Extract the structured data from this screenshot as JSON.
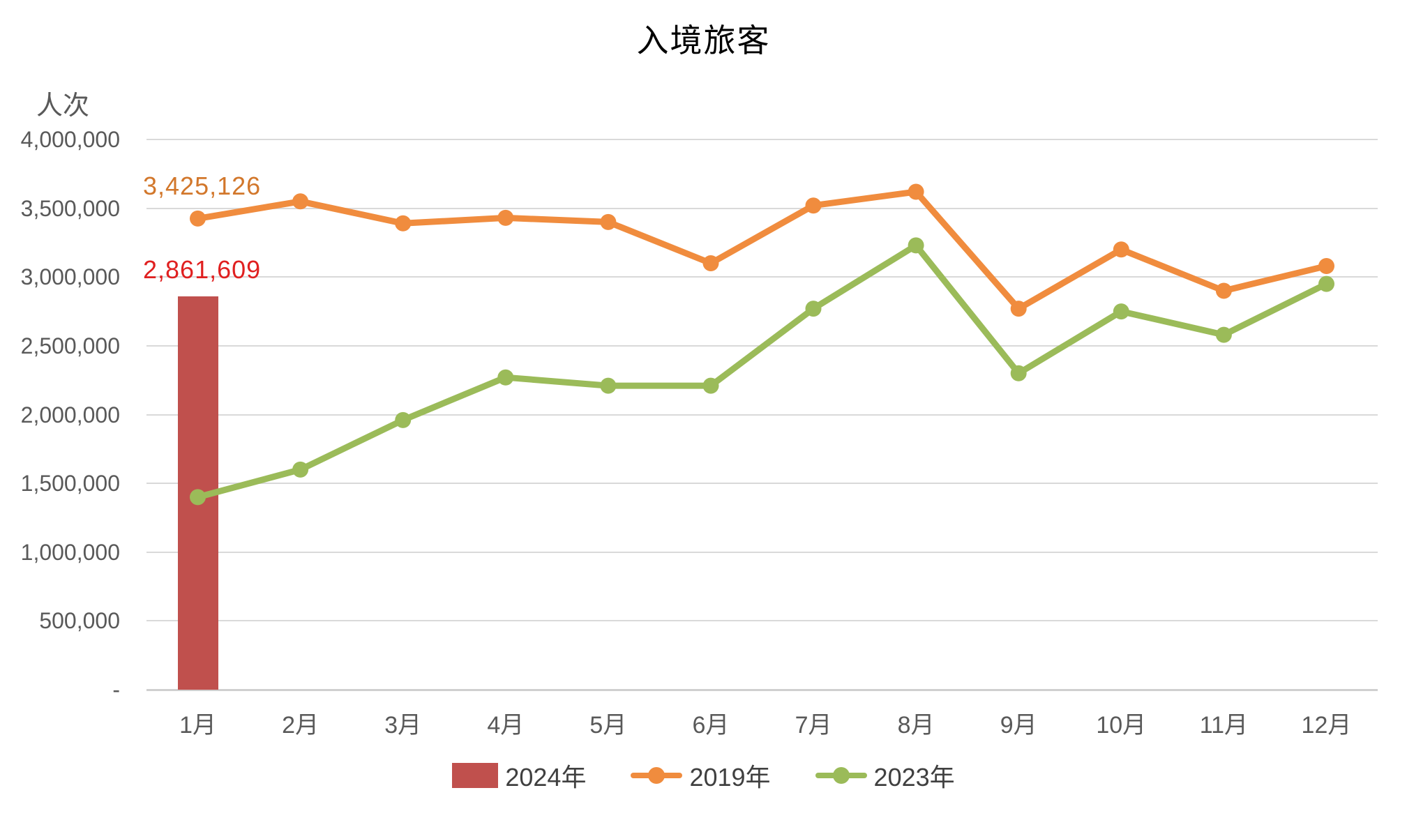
{
  "chart_data": {
    "type": "combo-bar-line",
    "title": "入境旅客",
    "background": "#FFFFFF",
    "grid": true,
    "y_axis": {
      "unit_label": "人次",
      "min": 0,
      "max": 4000000,
      "step": 500000,
      "tick_labels": [
        "4,000,000",
        "3,500,000",
        "3,000,000",
        "2,500,000",
        "2,000,000",
        "1,500,000",
        "1,000,000",
        "500,000",
        "-"
      ]
    },
    "categories": [
      "1月",
      "2月",
      "3月",
      "4月",
      "5月",
      "6月",
      "7月",
      "8月",
      "9月",
      "10月",
      "11月",
      "12月"
    ],
    "series": [
      {
        "name": "2024年",
        "type": "bar",
        "color": "#C0504D",
        "values": [
          2861609,
          null,
          null,
          null,
          null,
          null,
          null,
          null,
          null,
          null,
          null,
          null
        ]
      },
      {
        "name": "2019年",
        "type": "line",
        "color": "#F08C3E",
        "values": [
          3425126,
          3550000,
          3390000,
          3430000,
          3400000,
          3100000,
          3520000,
          3620000,
          2770000,
          3200000,
          2900000,
          3080000
        ]
      },
      {
        "name": "2023年",
        "type": "line",
        "color": "#9BBB59",
        "values": [
          1400000,
          1600000,
          1960000,
          2270000,
          2210000,
          2210000,
          2770000,
          3230000,
          2300000,
          2750000,
          2580000,
          2950000
        ]
      }
    ],
    "annotations": [
      {
        "text": "3,425,126",
        "series": "2019年",
        "color": "#D2772B"
      },
      {
        "text": "2,861,609",
        "series": "2024年",
        "color": "#E02020"
      }
    ],
    "legend": {
      "position": "bottom",
      "items": [
        "2024年",
        "2019年",
        "2023年"
      ]
    }
  }
}
